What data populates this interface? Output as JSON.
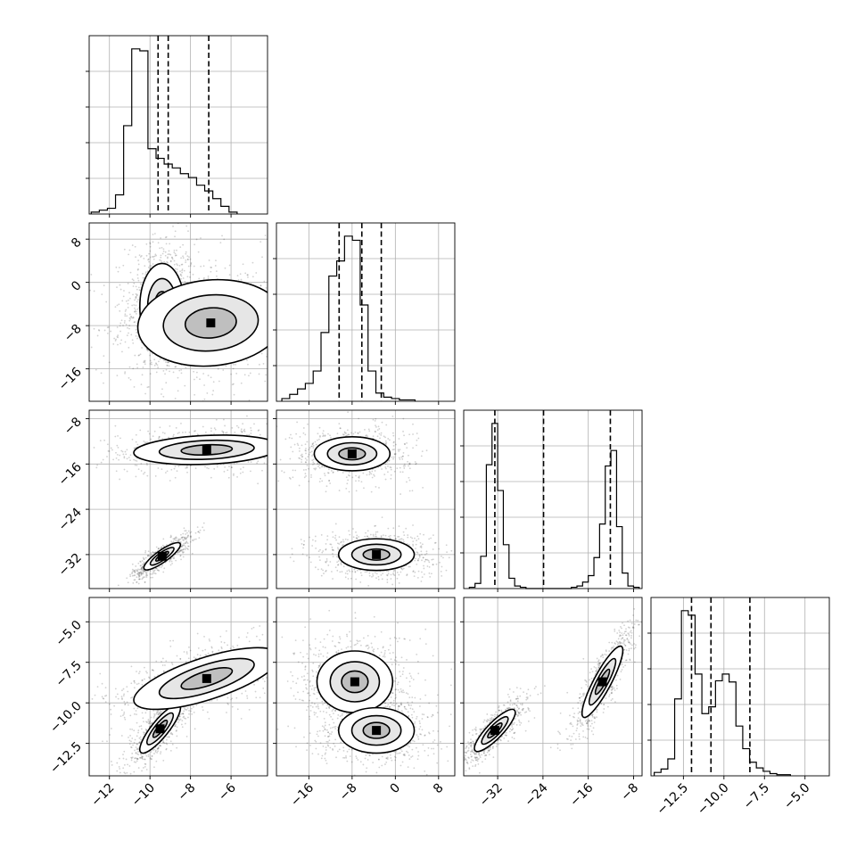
{
  "chart_data": {
    "type": "scatter",
    "variant": "corner-plot",
    "grid": true,
    "parameters": [
      {
        "range": [
          -13.0,
          -4.2
        ],
        "ticks": [
          {
            "value": -12,
            "label": "−12"
          },
          {
            "value": -10,
            "label": "−10"
          },
          {
            "value": -8,
            "label": "−8"
          },
          {
            "value": -6,
            "label": "−6"
          }
        ],
        "quantiles": [
          -9.6,
          -9.1,
          -7.1
        ],
        "hist": {
          "start": -12.9,
          "step": 0.4,
          "counts": [
            1,
            2,
            3,
            10,
            46,
            86,
            85,
            34,
            29,
            26,
            24,
            21,
            19,
            15,
            12,
            8,
            4,
            1
          ]
        }
      },
      {
        "range": [
          -22,
          11
        ],
        "ticks": [
          {
            "value": -16,
            "label": "−16"
          },
          {
            "value": -8,
            "label": "−8"
          },
          {
            "value": 0,
            "label": "0"
          },
          {
            "value": 8,
            "label": "8"
          }
        ],
        "quantiles": [
          -10.4,
          -6.2,
          -2.6
        ],
        "hist": {
          "start": -21.0,
          "step": 1.45,
          "counts": [
            2,
            5,
            9,
            13,
            22,
            50,
            91,
            102,
            120,
            117,
            70,
            22,
            6,
            3,
            2,
            1,
            1
          ]
        }
      },
      {
        "range": [
          -38,
          -6.5
        ],
        "ticks": [
          {
            "value": -32,
            "label": "−32"
          },
          {
            "value": -24,
            "label": "−24"
          },
          {
            "value": -16,
            "label": "−16"
          },
          {
            "value": -8,
            "label": "−8"
          }
        ],
        "quantiles": [
          -32.5,
          -23.9,
          -12.1
        ],
        "hist": {
          "start": -37.0,
          "step": 1.0,
          "counts": [
            1,
            4,
            25,
            96,
            128,
            76,
            34,
            8,
            2,
            1,
            0,
            0,
            0,
            0,
            0,
            0,
            0,
            0,
            1,
            2,
            5,
            10,
            24,
            50,
            95,
            107,
            48,
            12,
            2,
            1
          ]
        }
      },
      {
        "range": [
          -14.5,
          -3.5
        ],
        "ticks": [
          {
            "value": -12.5,
            "label": "−12.5"
          },
          {
            "value": -10.0,
            "label": "−10.0"
          },
          {
            "value": -7.5,
            "label": "−7.5"
          },
          {
            "value": -5.0,
            "label": "−5.0"
          }
        ],
        "quantiles": [
          -12.0,
          -10.8,
          -8.4
        ],
        "hist": {
          "start": -14.3,
          "step": 0.42,
          "counts": [
            3,
            6,
            15,
            68,
            146,
            142,
            90,
            55,
            61,
            84,
            90,
            83,
            44,
            24,
            12,
            7,
            4,
            2,
            1,
            1
          ]
        }
      }
    ],
    "pairs": [
      {
        "x": 0,
        "y": 1,
        "modes": [
          {
            "mean": [
              -9.4,
              -4.5
            ],
            "sd": [
              0.55,
              4.0
            ],
            "corr": 0.0,
            "w": 0.55
          },
          {
            "mean": [
              -7.0,
              -7.5
            ],
            "sd": [
              1.8,
              4.0
            ],
            "corr": 0.1,
            "w": 0.45
          }
        ]
      },
      {
        "x": 0,
        "y": 2,
        "modes": [
          {
            "mean": [
              -9.4,
              -32.3
            ],
            "sd": [
              0.45,
              1.2
            ],
            "corr": 0.85,
            "w": 0.5
          },
          {
            "mean": [
              -7.2,
              -13.5
            ],
            "sd": [
              1.8,
              1.3
            ],
            "corr": 0.2,
            "w": 0.5
          }
        ]
      },
      {
        "x": 0,
        "y": 3,
        "modes": [
          {
            "mean": [
              -9.5,
              -11.6
            ],
            "sd": [
              0.5,
              0.75
            ],
            "corr": 0.85,
            "w": 0.5
          },
          {
            "mean": [
              -7.2,
              -8.5
            ],
            "sd": [
              1.8,
              0.95
            ],
            "corr": 0.7,
            "w": 0.5
          }
        ]
      },
      {
        "x": 1,
        "y": 2,
        "modes": [
          {
            "mean": [
              -8.0,
              -14.2
            ],
            "sd": [
              3.5,
              1.5
            ],
            "corr": 0.0,
            "w": 0.5
          },
          {
            "mean": [
              -3.5,
              -32.0
            ],
            "sd": [
              3.5,
              1.4
            ],
            "corr": 0.0,
            "w": 0.5
          }
        ]
      },
      {
        "x": 1,
        "y": 3,
        "modes": [
          {
            "mean": [
              -7.5,
              -8.7
            ],
            "sd": [
              3.5,
              0.95
            ],
            "corr": 0.0,
            "w": 0.5
          },
          {
            "mean": [
              -3.5,
              -11.7
            ],
            "sd": [
              3.5,
              0.7
            ],
            "corr": 0.0,
            "w": 0.5
          }
        ]
      },
      {
        "x": 2,
        "y": 3,
        "modes": [
          {
            "mean": [
              -32.5,
              -11.7
            ],
            "sd": [
              1.8,
              0.65
            ],
            "corr": 0.85,
            "w": 0.5
          },
          {
            "mean": [
              -13.5,
              -8.7
            ],
            "sd": [
              1.8,
              1.1
            ],
            "corr": 0.88,
            "w": 0.5
          }
        ]
      }
    ]
  }
}
